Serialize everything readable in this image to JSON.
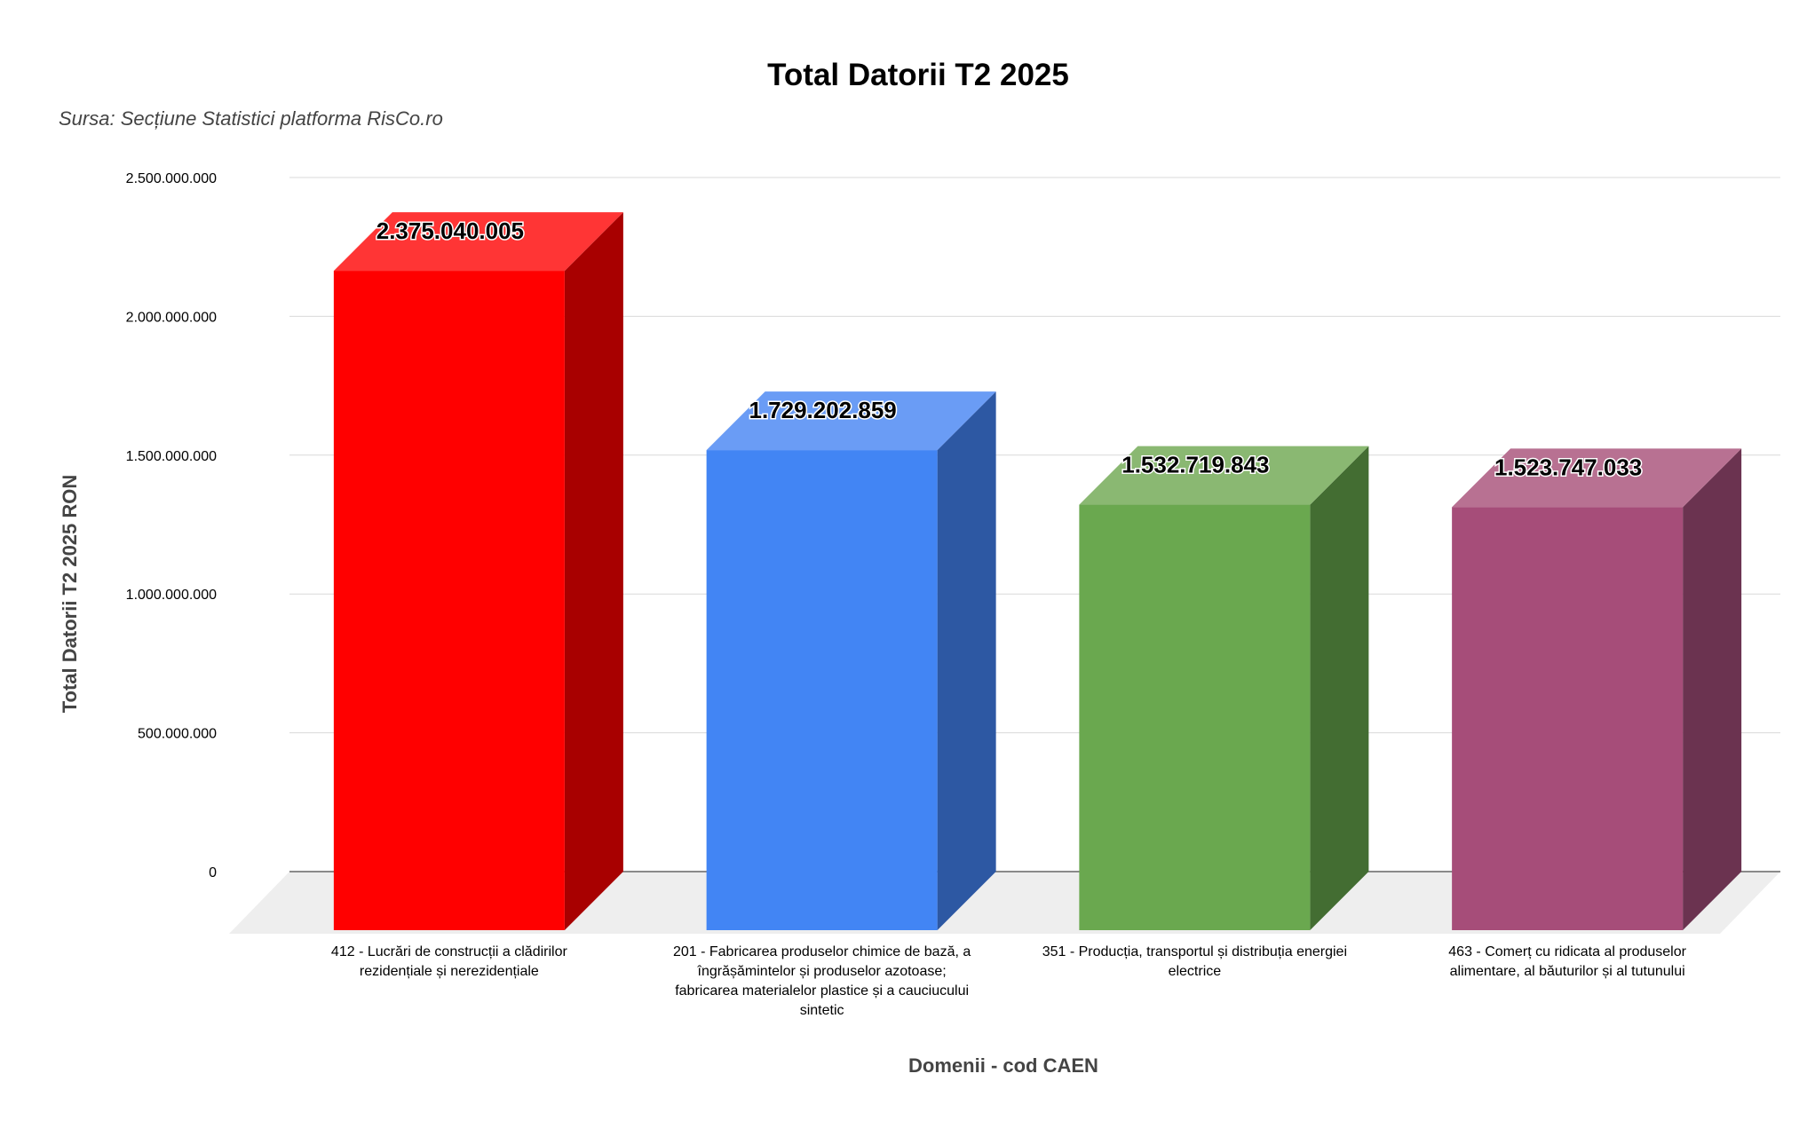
{
  "chart_data": {
    "type": "bar",
    "style": "3d",
    "title": "Total Datorii T2 2025",
    "subtitle": "Sursa: Secțiune Statistici platforma RisCo.ro",
    "xlabel": "Domenii - cod CAEN",
    "ylabel": "Total Datorii T2 2025 RON",
    "ylim": [
      0,
      2500000000
    ],
    "yticks": [
      0,
      500000000,
      1000000000,
      1500000000,
      2000000000,
      2500000000
    ],
    "ytick_labels": [
      "0",
      "500.000.000",
      "1.000.000.000",
      "1.500.000.000",
      "2.000.000.000",
      "2.500.000.000"
    ],
    "grid": true,
    "categories": [
      [
        "412 - Lucrări de construcții a clădirilor",
        "rezidențiale și nerezidențiale"
      ],
      [
        "201 - Fabricarea produselor chimice de bază, a",
        "îngrășămintelor și produselor azotoase;",
        "fabricarea materialelor plastice și a cauciucului",
        "sintetic"
      ],
      [
        "351 - Producția, transportul și distribuția energiei",
        "electrice"
      ],
      [
        "463 - Comerț cu ridicata al produselor",
        "alimentare, al băuturilor și al tutunului"
      ]
    ],
    "values": [
      2375040005,
      1729202859,
      1532719843,
      1523747033
    ],
    "value_labels": [
      "2.375.040.005",
      "1.729.202.859",
      "1.532.719.843",
      "1.523.747.033"
    ],
    "colors": [
      {
        "front": "#ff0000",
        "top": "#ff3535",
        "side": "#a80000"
      },
      {
        "front": "#4285f4",
        "top": "#6a9cf5",
        "side": "#2d58a3"
      },
      {
        "front": "#6aa84f",
        "top": "#8ab872",
        "side": "#436d32"
      },
      {
        "front": "#a64d79",
        "top": "#b87192",
        "side": "#6b3350"
      }
    ]
  }
}
